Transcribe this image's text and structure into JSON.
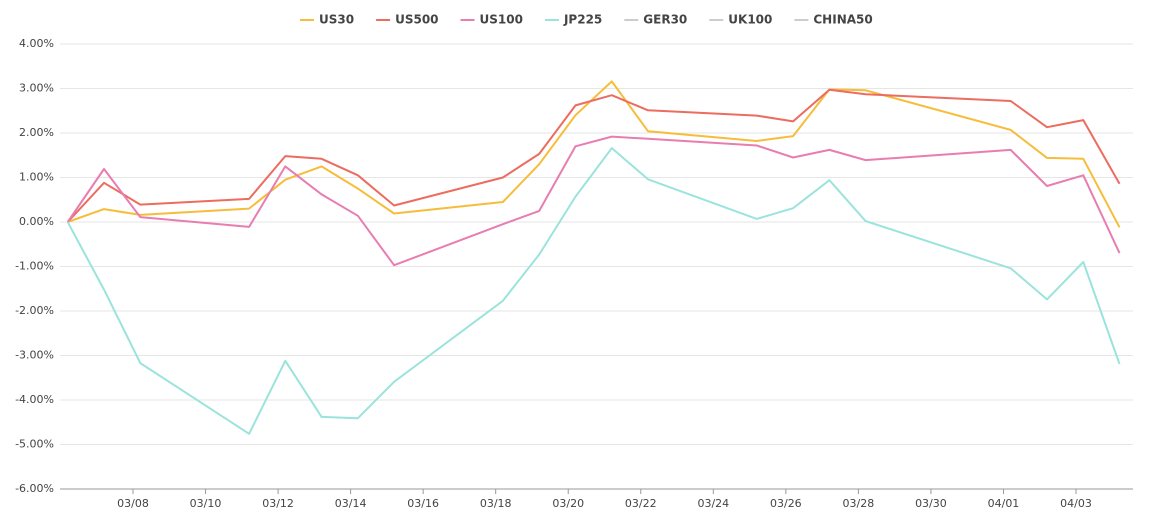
{
  "chart_data": {
    "type": "line",
    "x": [
      "03/06",
      "03/07",
      "03/08",
      "03/11",
      "03/12",
      "03/13",
      "03/14",
      "03/15",
      "03/18",
      "03/19",
      "03/20",
      "03/21",
      "03/22",
      "03/25",
      "03/26",
      "03/27",
      "03/28",
      "04/01",
      "04/02",
      "04/03",
      "04/04"
    ],
    "series": [
      {
        "name": "US30",
        "color": "#f6bd3a",
        "values": [
          0,
          0.29,
          0.16,
          0.3,
          0.95,
          1.25,
          0.75,
          0.19,
          0.45,
          1.3,
          2.4,
          3.16,
          2.04,
          1.82,
          1.93,
          2.98,
          2.96,
          2.07,
          1.44,
          1.42,
          -0.12
        ]
      },
      {
        "name": "US500",
        "color": "#ec6c5f",
        "values": [
          0,
          0.88,
          0.39,
          0.52,
          1.48,
          1.42,
          1.05,
          0.37,
          1.0,
          1.53,
          2.62,
          2.85,
          2.51,
          2.39,
          2.26,
          2.97,
          2.87,
          2.72,
          2.13,
          2.29,
          0.86
        ]
      },
      {
        "name": "US100",
        "color": "#e87db0",
        "values": [
          0,
          1.19,
          0.11,
          -0.11,
          1.25,
          0.62,
          0.14,
          -0.97,
          -0.05,
          0.25,
          1.7,
          1.92,
          1.87,
          1.72,
          1.45,
          1.62,
          1.39,
          1.62,
          0.81,
          1.05,
          -0.7
        ]
      },
      {
        "name": "JP225",
        "color": "#9be3dd",
        "values": [
          0,
          -1.52,
          -3.17,
          -4.76,
          -3.12,
          -4.38,
          -4.41,
          -3.59,
          -1.77,
          -0.73,
          0.57,
          1.66,
          0.96,
          0.07,
          0.31,
          0.94,
          0.02,
          -1.04,
          -1.74,
          -0.9,
          -3.19
        ]
      }
    ],
    "hidden_series": [
      "GER30",
      "UK100",
      "CHINA50"
    ],
    "hidden_color": "#cccccc",
    "xticks": [
      "03/08",
      "03/10",
      "03/12",
      "03/14",
      "03/16",
      "03/18",
      "03/20",
      "03/22",
      "03/24",
      "03/26",
      "03/28",
      "03/30",
      "04/01",
      "04/03"
    ],
    "ylim": [
      -6,
      4
    ],
    "yticks": [
      {
        "value": -6,
        "label": "-6.00%"
      },
      {
        "value": -5,
        "label": "-5.00%"
      },
      {
        "value": -4,
        "label": "-4.00%"
      },
      {
        "value": -3,
        "label": "-3.00%"
      },
      {
        "value": -2,
        "label": "-2.00%"
      },
      {
        "value": -1,
        "label": "-1.00%"
      },
      {
        "value": 0,
        "label": "0.00%"
      },
      {
        "value": 1,
        "label": "1.00%"
      },
      {
        "value": 2,
        "label": "2.00%"
      },
      {
        "value": 3,
        "label": "3.00%"
      },
      {
        "value": 4,
        "label": "4.00%"
      }
    ],
    "grid": true,
    "legend": "top"
  }
}
